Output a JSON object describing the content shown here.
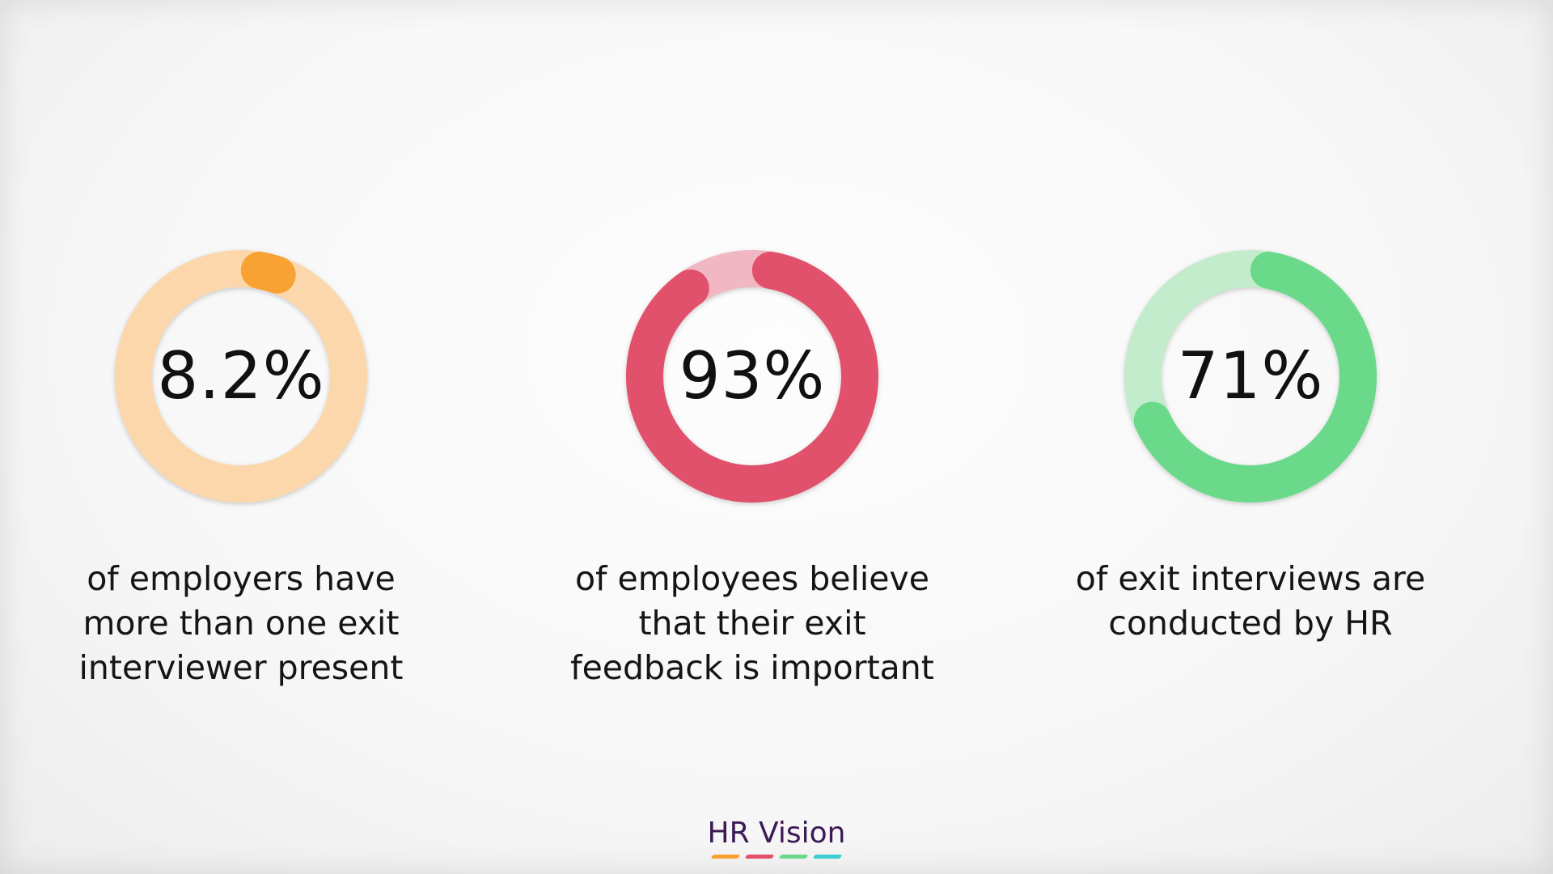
{
  "chart_data": [
    {
      "type": "pie",
      "variant": "donut",
      "value": 8.2,
      "label": "8.2%",
      "description": [
        "of employers have",
        "more than one exit",
        "interviewer present"
      ],
      "colors": {
        "fill": "#f7a233",
        "track": "#fcd7ab"
      }
    },
    {
      "type": "pie",
      "variant": "donut",
      "value": 93,
      "label": "93%",
      "description": [
        "of employees believe",
        "that their exit",
        "feedback is important"
      ],
      "colors": {
        "fill": "#e2516b",
        "track": "#f1b8c3"
      }
    },
    {
      "type": "pie",
      "variant": "donut",
      "value": 71,
      "label": "71%",
      "description": [
        "of exit interviews are",
        "conducted by HR"
      ],
      "colors": {
        "fill": "#6bd98a",
        "track": "#c2eccc"
      }
    }
  ],
  "brand": {
    "name": "HR Vision",
    "bar_colors": [
      "#f7a233",
      "#e2516b",
      "#6bd98a",
      "#3ccfcf"
    ]
  }
}
